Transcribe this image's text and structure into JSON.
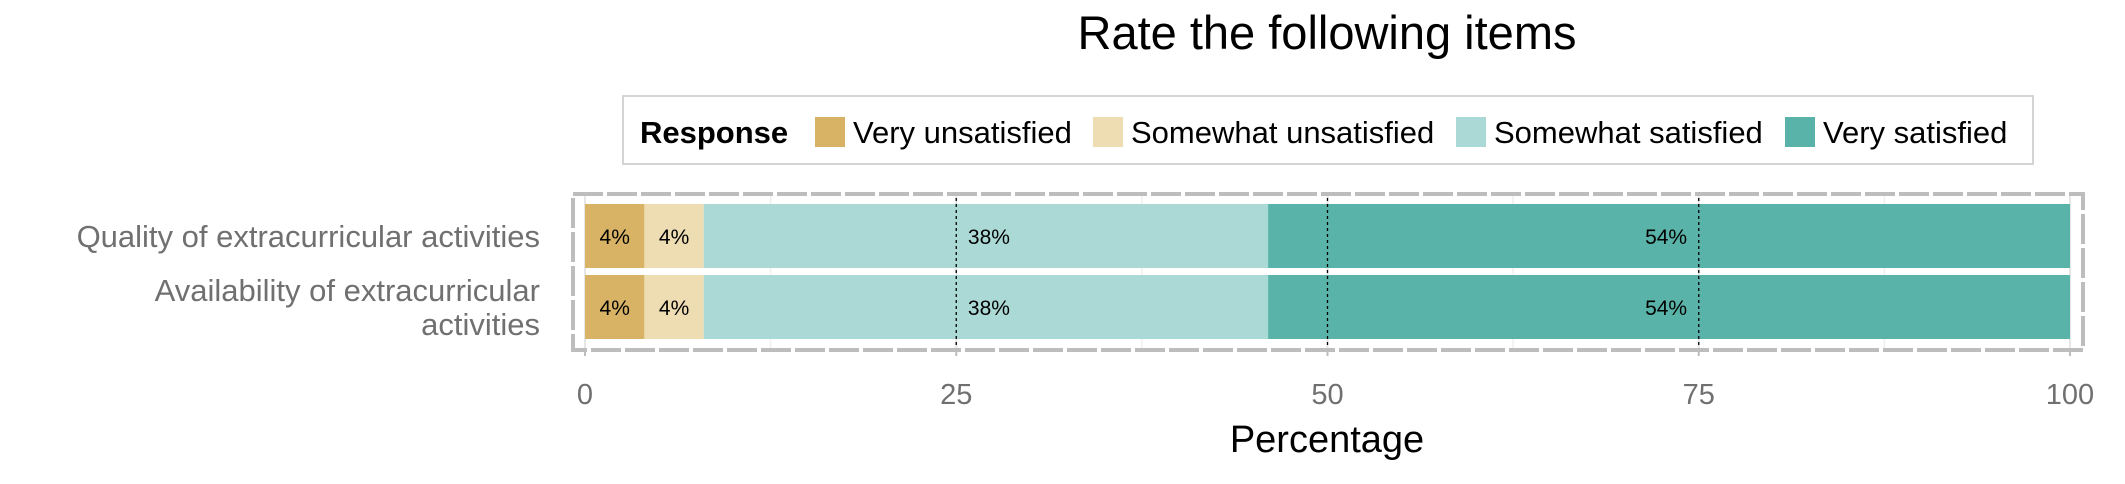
{
  "chart_data": {
    "type": "bar",
    "orientation": "horizontal",
    "stacked": true,
    "title": "Rate the following items",
    "xlabel": "Percentage",
    "ylabel": "",
    "xlim": [
      0,
      100
    ],
    "xticks": [
      0,
      25,
      50,
      75,
      100
    ],
    "grid": true,
    "legend": {
      "title": "Response",
      "position": "top",
      "entries": [
        "Very unsatisfied",
        "Somewhat unsatisfied",
        "Somewhat satisfied",
        "Very satisfied"
      ]
    },
    "categories": [
      "Quality of extracurricular activities",
      "Availability of extracurricular activities"
    ],
    "category_lines": [
      [
        "Quality of extracurricular activities"
      ],
      [
        "Availability of extracurricular",
        "activities"
      ]
    ],
    "series": [
      {
        "name": "Very unsatisfied",
        "color": "#D8B365",
        "values": [
          4,
          4
        ],
        "labels": [
          "4%",
          "4%"
        ]
      },
      {
        "name": "Somewhat unsatisfied",
        "color": "#EEDCB3",
        "values": [
          4,
          4
        ],
        "labels": [
          "4%",
          "4%"
        ]
      },
      {
        "name": "Somewhat satisfied",
        "color": "#ABD9D5",
        "values": [
          38,
          38
        ],
        "labels": [
          "38%",
          "38%"
        ]
      },
      {
        "name": "Very satisfied",
        "color": "#5AB3A8",
        "values": [
          54,
          54
        ],
        "labels": [
          "54%",
          "54%"
        ]
      }
    ],
    "reference_lines": [
      25,
      50,
      75
    ]
  }
}
